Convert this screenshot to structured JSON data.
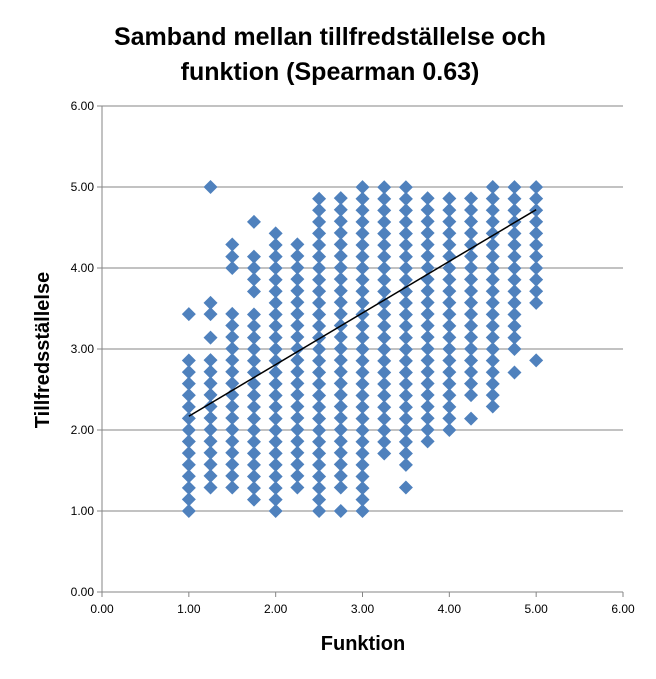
{
  "chart_data": {
    "type": "scatter",
    "title_line1": "Samband mellan tillfredställelse och",
    "title_line2": "funktion (Spearman 0.63)",
    "xlabel": "Funktion",
    "ylabel": "Tillfredsställelse",
    "xlim": [
      0,
      6
    ],
    "ylim": [
      0,
      6
    ],
    "x_ticks": [
      "0.00",
      "1.00",
      "2.00",
      "3.00",
      "4.00",
      "5.00",
      "6.00"
    ],
    "y_ticks": [
      "0.00",
      "1.00",
      "2.00",
      "3.00",
      "4.00",
      "5.00",
      "6.00"
    ],
    "grid": "horizontal",
    "marker_color": "#4f81bd",
    "trendline_color": "#000000",
    "trendline": {
      "x": [
        1.0,
        5.0
      ],
      "y": [
        2.17,
        4.72
      ]
    },
    "columns": [
      {
        "x": 1.0,
        "y_min": 1.0,
        "y_max": 3.0,
        "extra": [
          3.43
        ]
      },
      {
        "x": 1.25,
        "y_min": 1.29,
        "y_max": 3.0,
        "extra": [
          3.14,
          3.43,
          3.57,
          5.0
        ]
      },
      {
        "x": 1.5,
        "y_min": 1.29,
        "y_max": 3.57,
        "extra": [
          4.0,
          4.14,
          4.29
        ]
      },
      {
        "x": 1.75,
        "y_min": 1.14,
        "y_max": 3.43,
        "extra": [
          3.71,
          3.86,
          4.0,
          4.14,
          4.57
        ]
      },
      {
        "x": 2.0,
        "y_min": 1.14,
        "y_max": 4.43,
        "extra": [
          1.0
        ]
      },
      {
        "x": 2.25,
        "y_min": 1.29,
        "y_max": 4.43,
        "extra": []
      },
      {
        "x": 2.5,
        "y_min": 1.14,
        "y_max": 4.86,
        "extra": [
          1.0
        ]
      },
      {
        "x": 2.75,
        "y_min": 1.29,
        "y_max": 5.0,
        "extra": [
          1.0
        ]
      },
      {
        "x": 3.0,
        "y_min": 1.14,
        "y_max": 5.0,
        "extra": [
          1.0
        ]
      },
      {
        "x": 3.25,
        "y_min": 1.71,
        "y_max": 5.0,
        "extra": []
      },
      {
        "x": 3.5,
        "y_min": 1.71,
        "y_max": 5.0,
        "extra": [
          1.29,
          1.57
        ]
      },
      {
        "x": 3.75,
        "y_min": 1.86,
        "y_max": 5.0,
        "extra": []
      },
      {
        "x": 4.0,
        "y_min": 2.0,
        "y_max": 5.0,
        "extra": []
      },
      {
        "x": 4.25,
        "y_min": 2.43,
        "y_max": 5.0,
        "extra": [
          2.14
        ]
      },
      {
        "x": 4.5,
        "y_min": 2.57,
        "y_max": 5.0,
        "extra": [
          2.29,
          2.43
        ]
      },
      {
        "x": 4.75,
        "y_min": 3.14,
        "y_max": 5.0,
        "extra": [
          2.71,
          3.0
        ]
      },
      {
        "x": 5.0,
        "y_min": 3.57,
        "y_max": 5.0,
        "extra": [
          2.86
        ]
      }
    ],
    "y_step": 0.1429
  }
}
